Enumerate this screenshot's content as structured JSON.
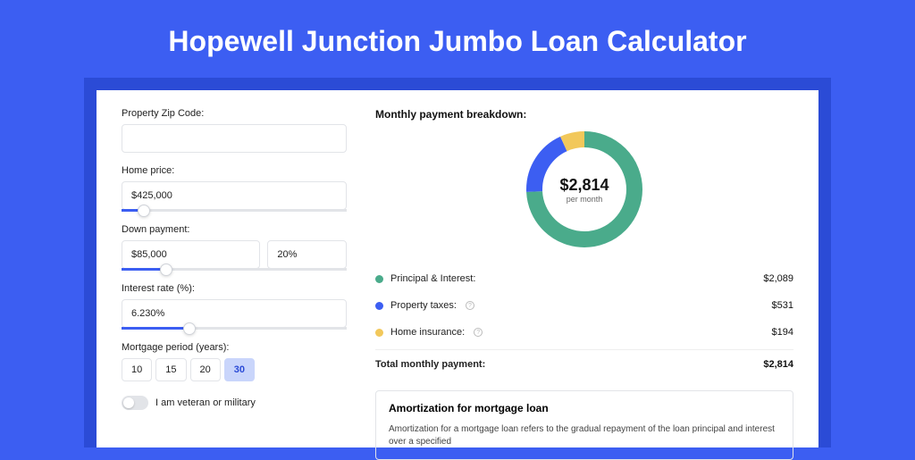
{
  "page": {
    "title": "Hopewell Junction Jumbo Loan Calculator",
    "background_color": "#3c5ef2",
    "inner_background_color": "#2b4bd6",
    "card_background": "#ffffff"
  },
  "form": {
    "zip": {
      "label": "Property Zip Code:",
      "value": ""
    },
    "home_price": {
      "label": "Home price:",
      "value": "$425,000",
      "slider_pct": 10
    },
    "down_payment": {
      "label": "Down payment:",
      "amount": "$85,000",
      "percent": "20%",
      "slider_pct": 20
    },
    "interest_rate": {
      "label": "Interest rate (%):",
      "value": "6.230%",
      "slider_pct": 30
    },
    "mortgage_period": {
      "label": "Mortgage period (years):",
      "options": [
        "10",
        "15",
        "20",
        "30"
      ],
      "selected": "30"
    },
    "veteran": {
      "label": "I am veteran or military",
      "checked": false
    }
  },
  "breakdown": {
    "title": "Monthly payment breakdown:",
    "center_amount": "$2,814",
    "center_sub": "per month",
    "donut": {
      "radius": 56,
      "stroke_width": 18,
      "segments": [
        {
          "key": "principal_interest",
          "fraction": 0.742,
          "color": "#4aab8b"
        },
        {
          "key": "property_taxes",
          "fraction": 0.189,
          "color": "#3c5ef2"
        },
        {
          "key": "home_insurance",
          "fraction": 0.069,
          "color": "#f2c85b"
        }
      ]
    },
    "items": [
      {
        "label": "Principal & Interest:",
        "value": "$2,089",
        "color": "#4aab8b",
        "info": false
      },
      {
        "label": "Property taxes:",
        "value": "$531",
        "color": "#3c5ef2",
        "info": true
      },
      {
        "label": "Home insurance:",
        "value": "$194",
        "color": "#f2c85b",
        "info": true
      }
    ],
    "total": {
      "label": "Total monthly payment:",
      "value": "$2,814"
    }
  },
  "amortization": {
    "title": "Amortization for mortgage loan",
    "text": "Amortization for a mortgage loan refers to the gradual repayment of the loan principal and interest over a specified"
  }
}
